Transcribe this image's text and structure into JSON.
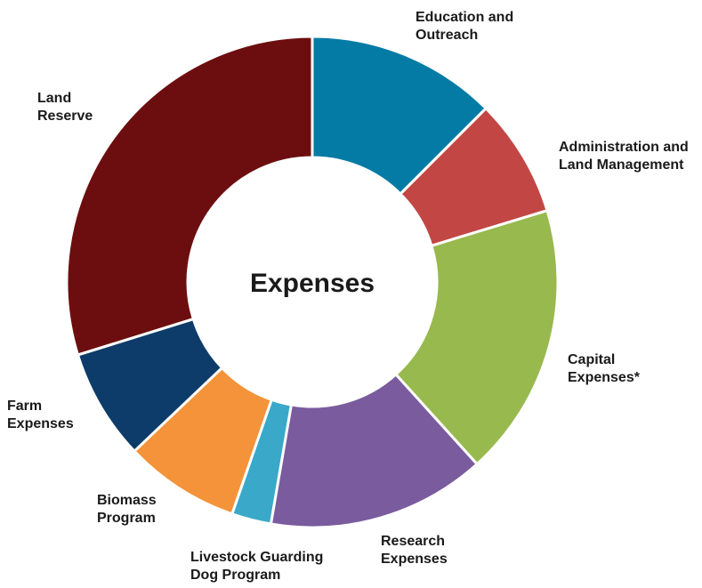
{
  "chart_data": {
    "type": "pie",
    "title": "Expenses",
    "slices": [
      {
        "label": "Education and Outreach",
        "value": 12.5,
        "color": "#037BA5"
      },
      {
        "label": "Administration and Land Management",
        "value": 7.8,
        "color": "#C24744"
      },
      {
        "label": "Capital Expenses*",
        "value": 18.0,
        "color": "#98B94E"
      },
      {
        "label": "Research Expenses",
        "value": 14.4,
        "color": "#7A5B9E"
      },
      {
        "label": "Livestock Guarding Dog Program",
        "value": 2.6,
        "color": "#3AA8C8"
      },
      {
        "label": "Biomass Program",
        "value": 7.6,
        "color": "#F49339"
      },
      {
        "label": "Farm Expenses",
        "value": 7.3,
        "color": "#0D3C6A"
      },
      {
        "label": "Land Reserve",
        "value": 29.8,
        "color": "#6C0E0F"
      }
    ],
    "legend": "none"
  }
}
